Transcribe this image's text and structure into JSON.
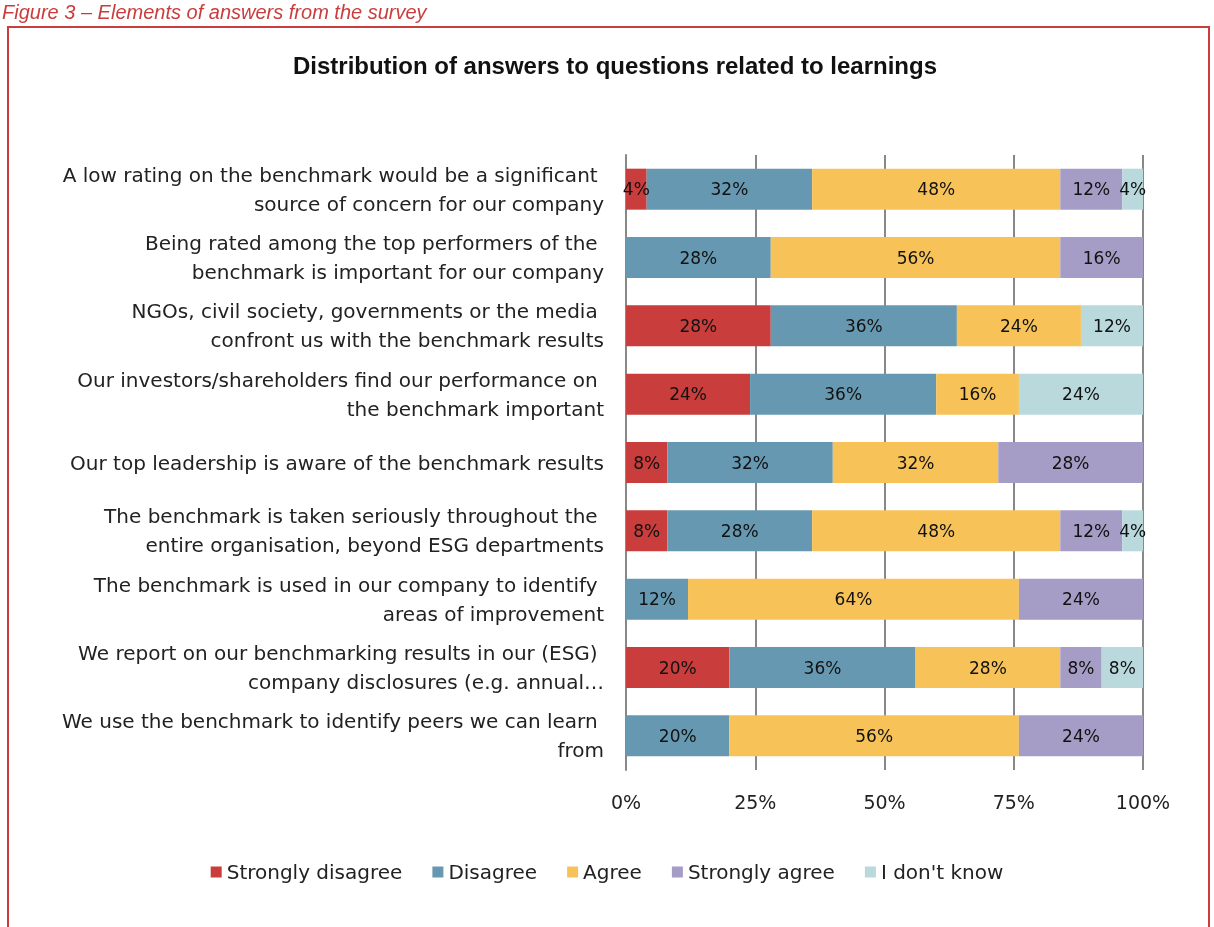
{
  "chart_data": {
    "type": "bar",
    "orientation": "horizontal",
    "stacked": true,
    "title": "Distribution of answers to questions related to learnings",
    "annotations": [
      "Figure 3 – Elements of answers from the survey"
    ],
    "categories": [
      "A low rating on the benchmark would be a significant source of concern for our company",
      "Being rated among the top performers of the benchmark is important for our company",
      "NGOs, civil society, governments or the media confront us with the benchmark results",
      "Our investors/shareholders find our performance on the benchmark important",
      "Our top leadership is aware of the benchmark results",
      "The benchmark is taken seriously throughout the entire organisation, beyond ESG departments",
      "The benchmark is used in our company to identify areas of improvement",
      "We report on our benchmarking results in our (ESG) company disclosures (e.g. annual…",
      "We use the benchmark to identify peers we can learn from"
    ],
    "series": [
      {
        "name": "Strongly disagree",
        "color": "#c93d3c",
        "values": [
          4,
          null,
          28,
          24,
          8,
          8,
          null,
          20,
          null
        ],
        "value_labels": [
          "4%",
          null,
          "28%",
          "24%",
          "8%",
          "8%",
          null,
          "20%",
          null
        ]
      },
      {
        "name": "Disagree",
        "color": "#6699b1",
        "values": [
          32,
          28,
          36,
          36,
          32,
          28,
          12,
          36,
          20
        ],
        "value_labels": [
          "32%",
          "28%",
          "36%",
          "36%",
          "32%",
          "28%",
          "12%",
          "36%",
          "20%"
        ]
      },
      {
        "name": "Agree",
        "color": "#f7c359",
        "values": [
          48,
          56,
          24,
          16,
          32,
          48,
          64,
          28,
          56
        ],
        "value_labels": [
          "48%",
          "56%",
          "24%",
          "16%",
          "32%",
          "48%",
          "64%",
          "28%",
          "56%"
        ]
      },
      {
        "name": "Strongly agree",
        "color": "#a59dc5",
        "values": [
          12,
          16,
          null,
          null,
          28,
          12,
          24,
          8,
          24
        ],
        "value_labels": [
          "12%",
          "16%",
          null,
          null,
          "28%",
          "12%",
          "24%",
          "8%",
          "24%"
        ]
      },
      {
        "name": "I don't know",
        "color": "#b9d9dc",
        "values": [
          4,
          null,
          12,
          24,
          null,
          4,
          null,
          8,
          null
        ],
        "value_labels": [
          "4%",
          null,
          "12%",
          "24%",
          null,
          "4%",
          null,
          "8%",
          null
        ]
      }
    ],
    "xlim": [
      0,
      100
    ],
    "xticks": [
      {
        "value": 0,
        "label": "0%"
      },
      {
        "value": 25,
        "label": "25%"
      },
      {
        "value": 50,
        "label": "50%"
      },
      {
        "value": 75,
        "label": "75%"
      },
      {
        "value": 100,
        "label": "100%"
      }
    ],
    "grid": "x",
    "legend": "bottom"
  }
}
